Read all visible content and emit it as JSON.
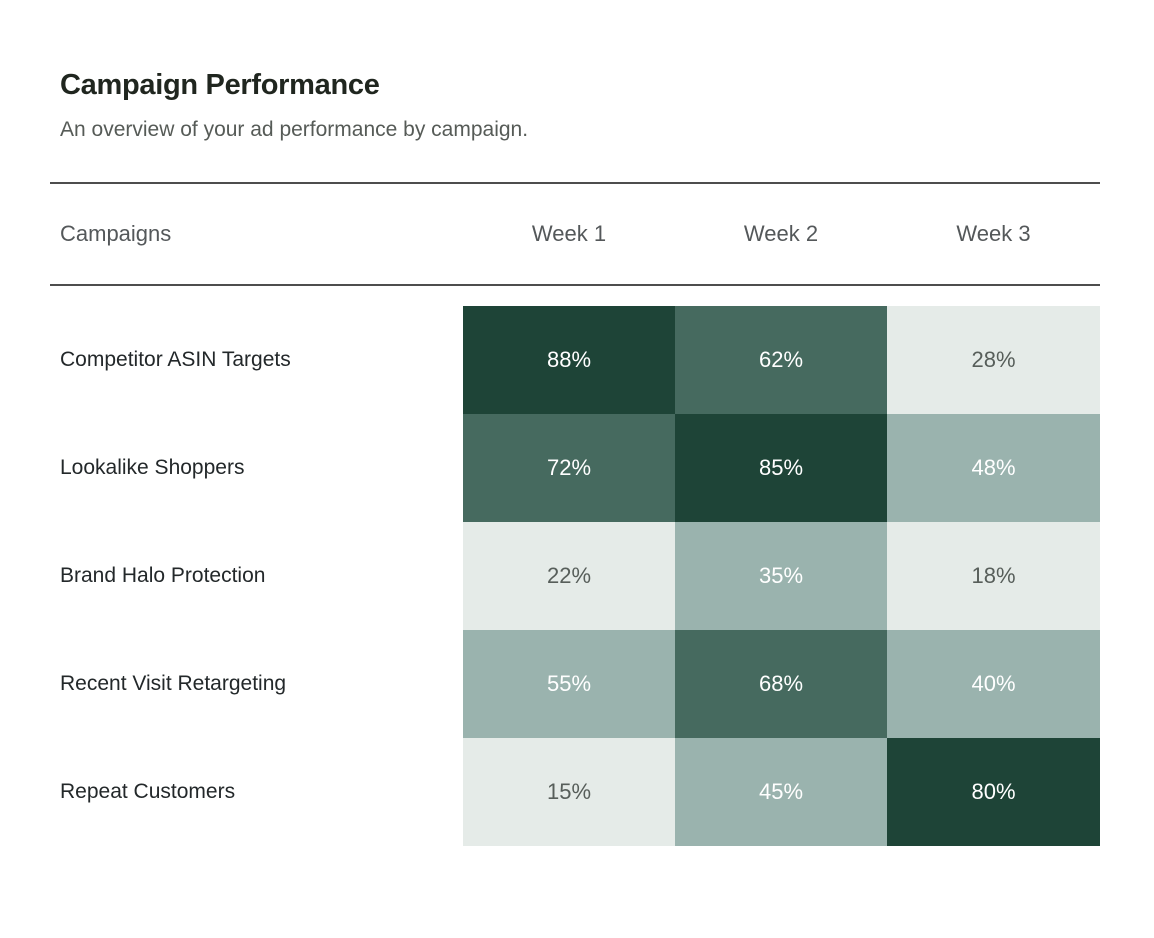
{
  "header": {
    "title": "Campaign Performance",
    "subtitle": "An overview of your ad performance by campaign."
  },
  "table": {
    "row_header_label": "Campaigns",
    "column_headers": [
      "Week 1",
      "Week 2",
      "Week 3"
    ],
    "rows": [
      {
        "label": "Competitor ASIN Targets",
        "cells": [
          "88%",
          "62%",
          "28%"
        ]
      },
      {
        "label": "Lookalike Shoppers",
        "cells": [
          "72%",
          "85%",
          "48%"
        ]
      },
      {
        "label": "Brand Halo Protection",
        "cells": [
          "22%",
          "35%",
          "18%"
        ]
      },
      {
        "label": "Recent Visit Retargeting",
        "cells": [
          "55%",
          "68%",
          "40%"
        ]
      },
      {
        "label": "Repeat Customers",
        "cells": [
          "15%",
          "45%",
          "80%"
        ]
      }
    ]
  },
  "chart_data": {
    "type": "heatmap",
    "title": "Campaign Performance",
    "subtitle": "An overview of your ad performance by campaign.",
    "x_categories": [
      "Week 1",
      "Week 2",
      "Week 3"
    ],
    "y_categories": [
      "Competitor ASIN Targets",
      "Lookalike Shoppers",
      "Brand Halo Protection",
      "Recent Visit Retargeting",
      "Repeat Customers"
    ],
    "values": [
      [
        88,
        62,
        28
      ],
      [
        72,
        85,
        48
      ],
      [
        22,
        35,
        18
      ],
      [
        55,
        68,
        40
      ],
      [
        15,
        45,
        80
      ]
    ],
    "unit": "%",
    "legend": "none",
    "color_scale": {
      "bins": [
        {
          "min": 0,
          "max": 29,
          "color": "#e5ebe8",
          "text_color": "#575e5a"
        },
        {
          "min": 30,
          "max": 59,
          "color": "#9ab3ae",
          "text_color": "#ffffff"
        },
        {
          "min": 60,
          "max": 74,
          "color": "#466a5f",
          "text_color": "#ffffff"
        },
        {
          "min": 75,
          "max": 100,
          "color": "#1e4437",
          "text_color": "#ffffff"
        }
      ]
    }
  },
  "colors": {
    "title_text": "#20261f",
    "subtitle_text": "#565b57",
    "header_text": "#54585a",
    "row_label_text": "#23282a",
    "divider": "#4d4d4d",
    "background": "#ffffff"
  }
}
